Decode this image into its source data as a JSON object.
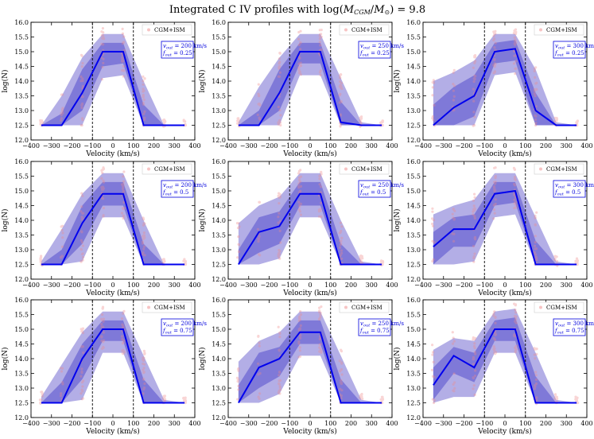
{
  "figure": {
    "title_prefix": "Integrated C IV profiles with log(",
    "title_M": "M",
    "title_cgm": "CGM",
    "title_sep": "/",
    "title_Mo": "M",
    "title_sun": "⊙",
    "title_suffix": ") = 9.8"
  },
  "chart_data": {
    "type": "line",
    "title": "Integrated C IV profiles with log(M_CGM/M_⊙) = 9.8",
    "xlabel": "Velocity (km/s)",
    "ylabel": "log(N)",
    "xlim": [
      -400,
      400
    ],
    "ylim": [
      12.0,
      16.0
    ],
    "xticks": [
      -400,
      -300,
      -200,
      -100,
      0,
      100,
      200,
      300,
      400
    ],
    "yticks": [
      12.0,
      12.5,
      13.0,
      13.5,
      14.0,
      14.5,
      15.0,
      15.5,
      16.0
    ],
    "vlines": [
      -100,
      100
    ],
    "legend_label": "CGM+ISM",
    "legend_position": "top-right",
    "x": [
      -350,
      -250,
      -150,
      -50,
      50,
      150,
      250,
      350
    ],
    "panels": [
      {
        "vout": "200 km/s",
        "fout": "0.25",
        "median": [
          12.5,
          12.5,
          13.6,
          15.0,
          15.0,
          12.5,
          12.5,
          12.5
        ],
        "inner_lo": [
          12.5,
          12.5,
          13.0,
          14.5,
          14.6,
          12.5,
          12.5,
          12.5
        ],
        "inner_hi": [
          12.5,
          12.9,
          14.4,
          15.3,
          15.3,
          13.2,
          12.5,
          12.5
        ],
        "outer_lo": [
          12.5,
          12.5,
          12.5,
          14.1,
          14.2,
          12.5,
          12.5,
          12.5
        ],
        "outer_hi": [
          12.5,
          13.5,
          14.8,
          15.6,
          15.6,
          14.0,
          12.5,
          12.5
        ]
      },
      {
        "vout": "250 km/s",
        "fout": "0.25",
        "median": [
          12.5,
          12.5,
          13.6,
          15.0,
          15.0,
          12.6,
          12.5,
          12.5
        ],
        "inner_lo": [
          12.5,
          12.5,
          13.0,
          14.6,
          14.6,
          12.5,
          12.5,
          12.5
        ],
        "inner_hi": [
          12.5,
          13.0,
          14.4,
          15.3,
          15.3,
          13.3,
          12.5,
          12.5
        ],
        "outer_lo": [
          12.5,
          12.5,
          12.5,
          14.2,
          14.2,
          12.5,
          12.5,
          12.5
        ],
        "outer_hi": [
          12.6,
          13.8,
          14.8,
          15.6,
          15.6,
          14.1,
          12.6,
          12.5
        ]
      },
      {
        "vout": "300 km/s",
        "fout": "0.25",
        "median": [
          12.5,
          13.1,
          13.5,
          15.0,
          15.1,
          13.0,
          12.5,
          12.5
        ],
        "inner_lo": [
          12.5,
          12.5,
          12.8,
          14.6,
          14.7,
          12.5,
          12.5,
          12.5
        ],
        "inner_hi": [
          13.2,
          13.8,
          14.2,
          15.3,
          15.4,
          13.6,
          12.5,
          12.5
        ],
        "outer_lo": [
          12.5,
          12.5,
          12.5,
          14.2,
          14.3,
          12.5,
          12.5,
          12.5
        ],
        "outer_hi": [
          14.0,
          14.3,
          14.7,
          15.6,
          15.6,
          14.4,
          12.6,
          12.5
        ]
      },
      {
        "vout": "200 km/s",
        "fout": "0.5",
        "median": [
          12.5,
          12.5,
          13.9,
          14.9,
          14.9,
          12.5,
          12.5,
          12.5
        ],
        "inner_lo": [
          12.5,
          12.5,
          13.2,
          14.5,
          14.5,
          12.5,
          12.5,
          12.5
        ],
        "inner_hi": [
          12.5,
          13.0,
          14.5,
          15.3,
          15.3,
          13.2,
          12.5,
          12.5
        ],
        "outer_lo": [
          12.5,
          12.5,
          12.6,
          14.1,
          14.1,
          12.5,
          12.5,
          12.5
        ],
        "outer_hi": [
          12.6,
          13.7,
          14.9,
          15.6,
          15.6,
          14.0,
          12.5,
          12.5
        ]
      },
      {
        "vout": "250 km/s",
        "fout": "0.5",
        "median": [
          12.5,
          13.6,
          13.8,
          14.9,
          14.9,
          12.5,
          12.5,
          12.5
        ],
        "inner_lo": [
          12.5,
          12.9,
          13.2,
          14.5,
          14.5,
          12.5,
          12.5,
          12.5
        ],
        "inner_hi": [
          13.0,
          14.1,
          14.3,
          15.3,
          15.3,
          13.2,
          12.5,
          12.5
        ],
        "outer_lo": [
          12.5,
          12.5,
          12.7,
          14.1,
          14.1,
          12.5,
          12.5,
          12.5
        ],
        "outer_hi": [
          13.9,
          14.5,
          14.8,
          15.6,
          15.6,
          14.0,
          12.6,
          12.5
        ]
      },
      {
        "vout": "300 km/s",
        "fout": "0.5",
        "median": [
          13.1,
          13.7,
          13.7,
          14.9,
          15.0,
          12.5,
          12.5,
          12.5
        ],
        "inner_lo": [
          12.5,
          13.1,
          13.1,
          14.5,
          14.6,
          12.5,
          12.5,
          12.5
        ],
        "inner_hi": [
          13.6,
          14.1,
          14.2,
          15.3,
          15.3,
          13.3,
          12.5,
          12.5
        ],
        "outer_lo": [
          12.5,
          12.5,
          12.6,
          14.1,
          14.2,
          12.5,
          12.5,
          12.5
        ],
        "outer_hi": [
          14.2,
          14.5,
          14.7,
          15.6,
          15.6,
          14.1,
          12.6,
          12.5
        ]
      },
      {
        "vout": "200 km/s",
        "fout": "0.75",
        "median": [
          12.5,
          12.5,
          14.0,
          15.0,
          15.0,
          12.5,
          12.5,
          12.5
        ],
        "inner_lo": [
          12.5,
          12.5,
          13.3,
          14.6,
          14.6,
          12.5,
          12.5,
          12.5
        ],
        "inner_hi": [
          12.5,
          13.2,
          14.5,
          15.3,
          15.3,
          13.3,
          12.5,
          12.5
        ],
        "outer_lo": [
          12.5,
          12.5,
          12.6,
          14.2,
          14.2,
          12.5,
          12.5,
          12.5
        ],
        "outer_hi": [
          12.7,
          13.8,
          14.9,
          15.6,
          15.6,
          14.1,
          12.6,
          12.5
        ]
      },
      {
        "vout": "250 km/s",
        "fout": "0.75",
        "median": [
          12.5,
          13.7,
          14.0,
          14.9,
          14.9,
          12.5,
          12.5,
          12.5
        ],
        "inner_lo": [
          12.5,
          13.0,
          13.4,
          14.5,
          14.5,
          12.5,
          12.5,
          12.5
        ],
        "inner_hi": [
          13.1,
          14.2,
          14.4,
          15.3,
          15.3,
          13.3,
          12.5,
          12.5
        ],
        "outer_lo": [
          12.5,
          12.5,
          12.8,
          14.1,
          14.1,
          12.5,
          12.5,
          12.5
        ],
        "outer_hi": [
          13.9,
          14.6,
          14.9,
          15.6,
          15.6,
          14.1,
          12.6,
          12.5
        ]
      },
      {
        "vout": "300 km/s",
        "fout": "0.75",
        "median": [
          13.1,
          14.1,
          13.7,
          15.0,
          15.0,
          12.5,
          12.5,
          12.5
        ],
        "inner_lo": [
          12.6,
          13.5,
          13.2,
          14.6,
          14.6,
          12.5,
          12.5,
          12.5
        ],
        "inner_hi": [
          13.7,
          14.4,
          14.2,
          15.3,
          15.4,
          13.4,
          12.5,
          12.5
        ],
        "outer_lo": [
          12.5,
          12.7,
          12.7,
          14.2,
          14.2,
          12.5,
          12.5,
          12.5
        ],
        "outer_hi": [
          14.3,
          14.7,
          14.6,
          15.6,
          15.7,
          14.2,
          12.6,
          12.5
        ]
      }
    ]
  },
  "style": {
    "outer_band_color": "#b3aee6",
    "inner_band_color": "#7f79d8",
    "median_color": "#0000ee",
    "scatter_color": "#f08a8a",
    "param_color": "#0000dd",
    "vline_color": "#000000"
  },
  "labels": {
    "vout_sub": "out",
    "fout_sub": "out",
    "v_prefix": "v",
    "f_prefix": "f",
    "eq": " = "
  }
}
